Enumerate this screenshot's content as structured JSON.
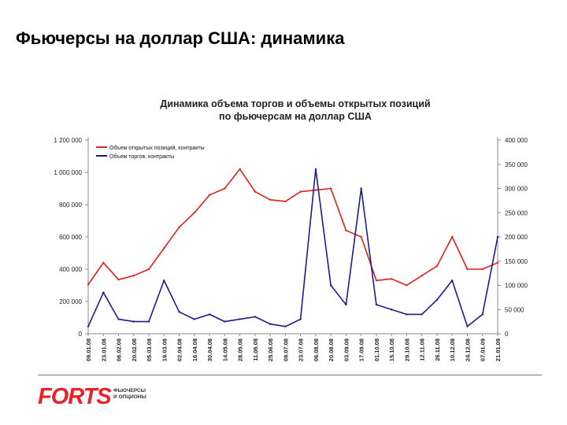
{
  "slide": {
    "title": "Фьючерсы на доллар США: динамика"
  },
  "logo": {
    "word": "FORTS",
    "subtitle_line1": "фьючерсы",
    "subtitle_line2": "и опционы"
  },
  "chart_data": {
    "type": "line",
    "title_line1": "Динамика объема торгов и объемы открытых позиций",
    "title_line2": "по фьючерсам на доллар США",
    "legend_position": "top-left",
    "grid": false,
    "categories": [
      "09.01.08",
      "23.01.08",
      "06.02.08",
      "20.02.08",
      "05.03.08",
      "19.03.08",
      "02.04.08",
      "16.04.08",
      "30.04.08",
      "14.05.08",
      "28.05.08",
      "11.06.08",
      "25.06.08",
      "09.07.08",
      "23.07.08",
      "06.08.08",
      "20.08.08",
      "03.09.08",
      "17.09.08",
      "01.10.08",
      "15.10.08",
      "29.10.08",
      "12.11.08",
      "26.11.08",
      "10.12.08",
      "24.12.08",
      "07.01.09",
      "21.01.09"
    ],
    "y_left": {
      "ylim": [
        0,
        1200000
      ],
      "tick_labels": [
        "0",
        "200 000",
        "400 000",
        "600 000",
        "800 000",
        "1 000 000",
        "1 200 000"
      ]
    },
    "y_right": {
      "ylim": [
        0,
        400000
      ],
      "tick_labels": [
        "0",
        "50 000",
        "100 000",
        "150 000",
        "200 000",
        "250 000",
        "300 000",
        "350 000",
        "400 000"
      ]
    },
    "series": [
      {
        "name": "Объем открытых позиций, контракты",
        "color": "#e0201c",
        "axis": "left",
        "values": [
          305000,
          440000,
          335000,
          360000,
          400000,
          530000,
          660000,
          750000,
          860000,
          900000,
          1020000,
          880000,
          830000,
          820000,
          880000,
          890000,
          900000,
          640000,
          600000,
          330000,
          340000,
          300000,
          360000,
          420000,
          600000,
          400000,
          400000,
          440000
        ]
      },
      {
        "name": "Объем торгов, контракты",
        "color": "#1c1c8c",
        "axis": "right",
        "values": [
          15000,
          85000,
          30000,
          25000,
          25000,
          110000,
          45000,
          30000,
          40000,
          25000,
          30000,
          35000,
          20000,
          15000,
          30000,
          340000,
          100000,
          60000,
          300000,
          60000,
          50000,
          40000,
          40000,
          70000,
          110000,
          15000,
          40000,
          200000
        ]
      }
    ]
  }
}
